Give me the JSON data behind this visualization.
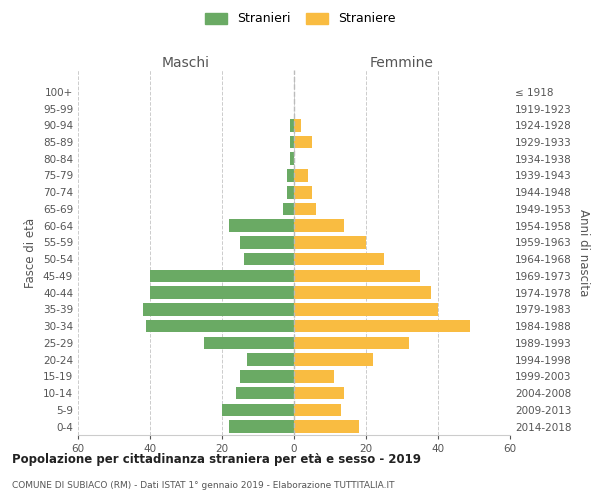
{
  "age_groups": [
    "0-4",
    "5-9",
    "10-14",
    "15-19",
    "20-24",
    "25-29",
    "30-34",
    "35-39",
    "40-44",
    "45-49",
    "50-54",
    "55-59",
    "60-64",
    "65-69",
    "70-74",
    "75-79",
    "80-84",
    "85-89",
    "90-94",
    "95-99",
    "100+"
  ],
  "birth_years": [
    "2014-2018",
    "2009-2013",
    "2004-2008",
    "1999-2003",
    "1994-1998",
    "1989-1993",
    "1984-1988",
    "1979-1983",
    "1974-1978",
    "1969-1973",
    "1964-1968",
    "1959-1963",
    "1954-1958",
    "1949-1953",
    "1944-1948",
    "1939-1943",
    "1934-1938",
    "1929-1933",
    "1924-1928",
    "1919-1923",
    "≤ 1918"
  ],
  "maschi": [
    18,
    20,
    16,
    15,
    13,
    25,
    41,
    42,
    40,
    40,
    14,
    15,
    18,
    3,
    2,
    2,
    1,
    1,
    1,
    0,
    0
  ],
  "femmine": [
    18,
    13,
    14,
    11,
    22,
    32,
    49,
    40,
    38,
    35,
    25,
    20,
    14,
    6,
    5,
    4,
    0,
    5,
    2,
    0,
    0
  ],
  "maschi_color": "#6aaa64",
  "femmine_color": "#f9bc41",
  "bg_color": "#ffffff",
  "grid_color": "#cccccc",
  "title": "Popolazione per cittadinanza straniera per età e sesso - 2019",
  "subtitle": "COMUNE DI SUBIACO (RM) - Dati ISTAT 1° gennaio 2019 - Elaborazione TUTTITALIA.IT",
  "xlabel_left": "Maschi",
  "xlabel_right": "Femmine",
  "ylabel_left": "Fasce di età",
  "ylabel_right": "Anni di nascita",
  "legend_maschi": "Stranieri",
  "legend_femmine": "Straniere",
  "xlim": 60,
  "bar_height": 0.75
}
